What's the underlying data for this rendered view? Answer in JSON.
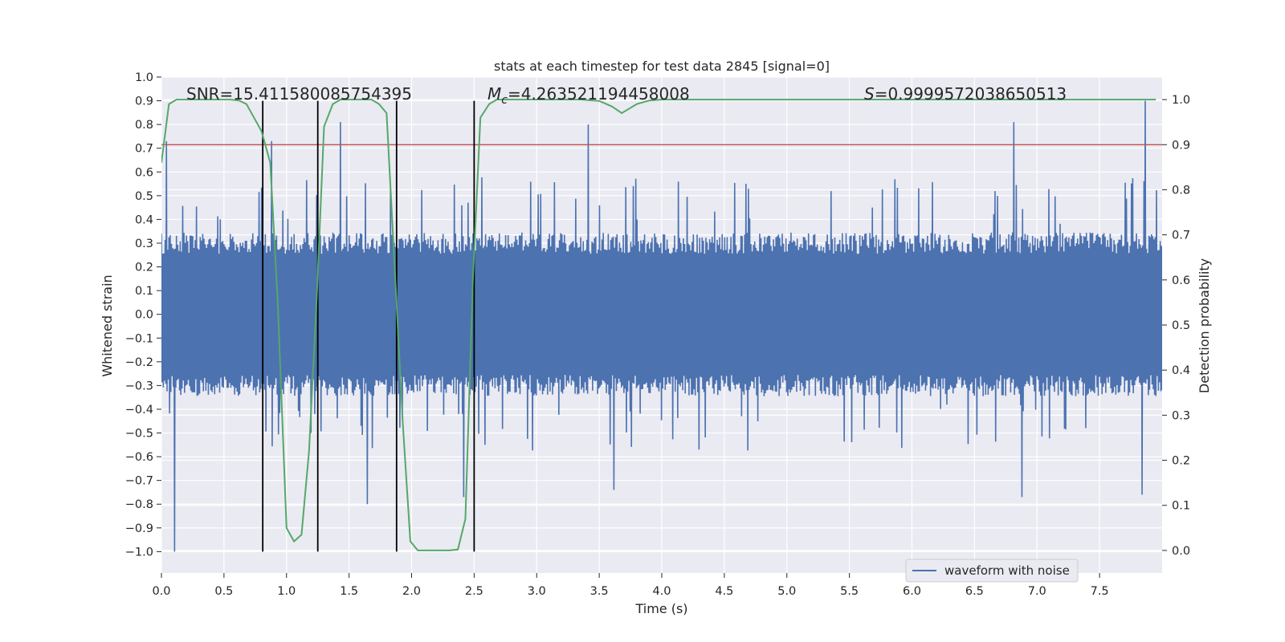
{
  "chart_data": {
    "type": "line",
    "title": "stats at each timestep for test data 2845 [signal=0]",
    "xlabel": "Time (s)",
    "ylabel": "Whitened strain",
    "y2label": "Detection probability",
    "xlim": [
      0.0,
      8.0
    ],
    "ylim": [
      -1.09,
      1.0
    ],
    "y2lim": [
      -0.05,
      1.05
    ],
    "xticks": [
      0.0,
      0.5,
      1.0,
      1.5,
      2.0,
      2.5,
      3.0,
      3.5,
      4.0,
      4.5,
      5.0,
      5.5,
      6.0,
      6.5,
      7.0,
      7.5
    ],
    "xtick_labels": [
      "0.0",
      "0.5",
      "1.0",
      "1.5",
      "2.0",
      "2.5",
      "3.0",
      "3.5",
      "4.0",
      "4.5",
      "5.0",
      "5.5",
      "6.0",
      "6.5",
      "7.0",
      "7.5"
    ],
    "yticks": [
      1.0,
      0.9,
      0.8,
      0.7,
      0.6,
      0.5,
      0.4,
      0.3,
      0.2,
      0.1,
      0.0,
      -0.1,
      -0.2,
      -0.3,
      -0.4,
      -0.5,
      -0.6,
      -0.7,
      -0.8,
      -0.9,
      -1.0
    ],
    "ytick_labels": [
      "1.0",
      "0.9",
      "0.8",
      "0.7",
      "0.6",
      "0.5",
      "0.4",
      "0.3",
      "0.2",
      "0.1",
      "0.0",
      "−0.1",
      "−0.2",
      "−0.3",
      "−0.4",
      "−0.5",
      "−0.6",
      "−0.7",
      "−0.8",
      "−0.9",
      "−1.0"
    ],
    "y2ticks": [
      1.0,
      0.9,
      0.8,
      0.7,
      0.6,
      0.5,
      0.4,
      0.3,
      0.2,
      0.1,
      0.0
    ],
    "y2tick_labels": [
      "1.0",
      "0.9",
      "0.8",
      "0.7",
      "0.6",
      "0.5",
      "0.4",
      "0.3",
      "0.2",
      "0.1",
      "0.0"
    ],
    "annotations": {
      "snr": "SNR=15.411580085754395",
      "mc_symbol": "M",
      "mc_sub": "c",
      "mc_value": "=4.263521194458008",
      "s_symbol": "S",
      "s_value": "=0.9999572038650513"
    },
    "legend": {
      "label": "waveform with noise",
      "location": "lower-right"
    },
    "waveform": {
      "name": "waveform with noise",
      "color": "#4c72b0",
      "x_start": 0.0,
      "x_end": 8.0,
      "n_samples": 1600,
      "core_amplitude": 0.3,
      "seed": 2845,
      "peaks": [
        {
          "t": 0.1,
          "v": -1.0
        },
        {
          "t": 0.04,
          "v": 0.73
        },
        {
          "t": 0.88,
          "v": 0.73
        },
        {
          "t": 1.43,
          "v": 0.81
        },
        {
          "t": 1.64,
          "v": -0.8
        },
        {
          "t": 2.41,
          "v": -0.77
        },
        {
          "t": 3.41,
          "v": 0.8
        },
        {
          "t": 3.61,
          "v": -0.74
        },
        {
          "t": 6.81,
          "v": 0.81
        },
        {
          "t": 6.88,
          "v": -0.77
        },
        {
          "t": 7.86,
          "v": 0.9
        },
        {
          "t": 7.84,
          "v": -0.76
        }
      ]
    },
    "probability": {
      "name": "detection probability",
      "color": "#55a868",
      "t": [
        0.0,
        0.06,
        0.12,
        0.18,
        0.25,
        0.35,
        0.45,
        0.55,
        0.62,
        0.68,
        0.74,
        0.8,
        0.87,
        0.93,
        1.0,
        1.06,
        1.12,
        1.18,
        1.24,
        1.3,
        1.37,
        1.43,
        1.49,
        1.55,
        1.62,
        1.68,
        1.74,
        1.8,
        1.87,
        1.93,
        1.99,
        2.05,
        2.12,
        2.18,
        2.24,
        2.3,
        2.37,
        2.43,
        2.49,
        2.55,
        2.62,
        2.68,
        2.8,
        3.0,
        3.2,
        3.35,
        3.5,
        3.6,
        3.68,
        3.74,
        3.8,
        3.9,
        4.0,
        4.2,
        4.4,
        4.6,
        5.0,
        6.0,
        7.0,
        7.95
      ],
      "p": [
        0.86,
        0.99,
        1.0,
        1.0,
        1.0,
        1.0,
        1.0,
        1.0,
        0.998,
        0.99,
        0.96,
        0.93,
        0.86,
        0.55,
        0.05,
        0.02,
        0.035,
        0.22,
        0.55,
        0.94,
        0.99,
        1.0,
        1.0,
        1.0,
        1.0,
        1.0,
        0.99,
        0.97,
        0.6,
        0.28,
        0.02,
        0.0,
        0.0,
        0.0,
        0.0,
        0.0,
        0.002,
        0.07,
        0.6,
        0.96,
        0.99,
        1.0,
        1.0,
        1.0,
        1.0,
        1.0,
        0.997,
        0.985,
        0.97,
        0.98,
        0.99,
        0.998,
        1.0,
        1.0,
        1.0,
        1.0,
        1.0,
        1.0,
        1.0,
        1.0
      ]
    },
    "threshold": {
      "value": 0.9,
      "axis": "y2",
      "color": "#c44e52"
    },
    "vlines": {
      "x": [
        0.81,
        1.25,
        1.88,
        2.5
      ],
      "ymin": -1.0,
      "ymax": 0.9,
      "color": "#000000"
    }
  }
}
